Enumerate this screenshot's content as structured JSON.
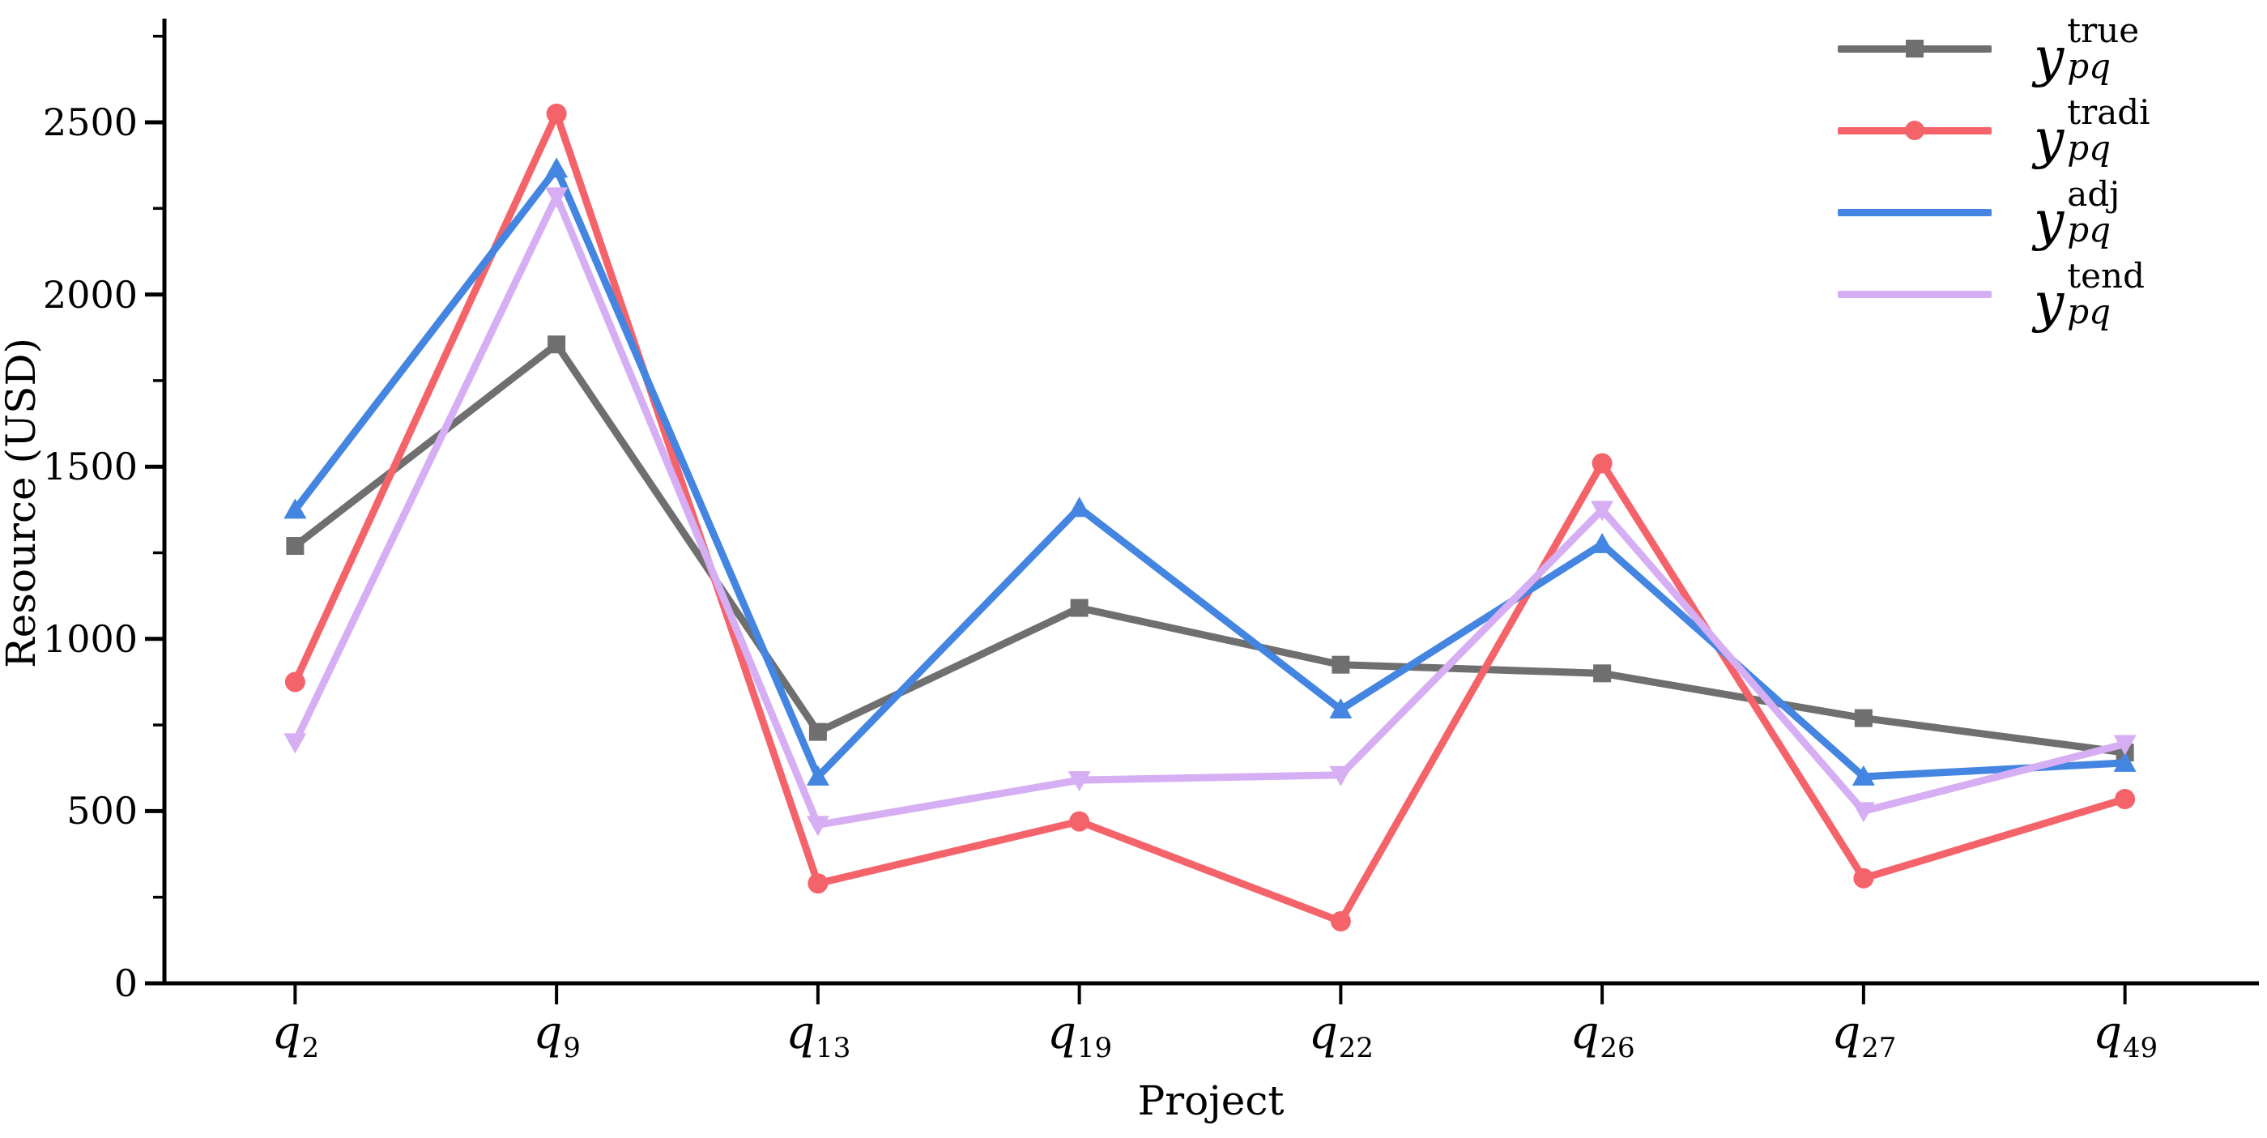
{
  "figure": {
    "background": "#ffffff",
    "axis_color": "#000000"
  },
  "chart_data": {
    "type": "line",
    "title": "",
    "xlabel": "Project",
    "ylabel": "Resource (USD)",
    "categories": [
      "q2",
      "q9",
      "q13",
      "q19",
      "q22",
      "q26",
      "q27",
      "q49"
    ],
    "category_labels": [
      {
        "base": "q",
        "sub": "2"
      },
      {
        "base": "q",
        "sub": "9"
      },
      {
        "base": "q",
        "sub": "13"
      },
      {
        "base": "q",
        "sub": "19"
      },
      {
        "base": "q",
        "sub": "22"
      },
      {
        "base": "q",
        "sub": "26"
      },
      {
        "base": "q",
        "sub": "27"
      },
      {
        "base": "q",
        "sub": "49"
      }
    ],
    "ylim": [
      0,
      2800
    ],
    "yticks": [
      0,
      500,
      1000,
      1500,
      2000,
      2500
    ],
    "minor_ytick_step": 250,
    "grid": false,
    "legend_position": "top-right",
    "series": [
      {
        "name": "y_pq^true",
        "label": {
          "base": "y",
          "sup": "true",
          "sub": "pq"
        },
        "marker": "square",
        "color": "#6f6f6f",
        "values": [
          1270,
          1855,
          730,
          1090,
          925,
          900,
          770,
          670
        ]
      },
      {
        "name": "y_pq^tradi",
        "label": {
          "base": "y",
          "sup": "tradi",
          "sub": "pq"
        },
        "marker": "circle",
        "color": "#f5636a",
        "values": [
          875,
          2525,
          290,
          470,
          180,
          1510,
          305,
          535
        ]
      },
      {
        "name": "y_pq^adj",
        "label": {
          "base": "y",
          "sup": "adj",
          "sub": "pq"
        },
        "marker": "triangle-up",
        "color": "#4385e1",
        "values": [
          1375,
          2365,
          600,
          1380,
          795,
          1275,
          600,
          640
        ]
      },
      {
        "name": "y_pq^tend",
        "label": {
          "base": "y",
          "sup": "tend",
          "sub": "pq"
        },
        "marker": "triangle-down",
        "color": "#d6aef3",
        "values": [
          700,
          2285,
          460,
          590,
          605,
          1375,
          500,
          695
        ]
      }
    ]
  }
}
